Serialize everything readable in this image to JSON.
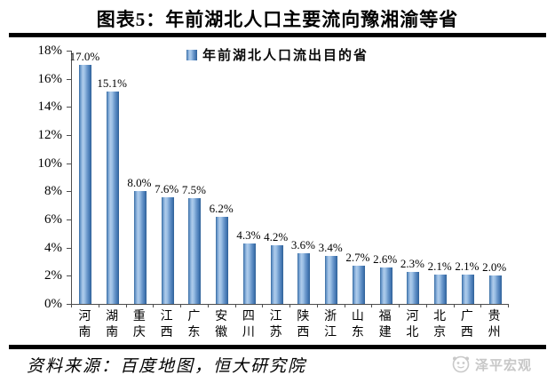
{
  "header": {
    "title": "图表5：年前湖北人口主要流向豫湘渝等省"
  },
  "chart_data": {
    "type": "bar",
    "title": "图表5：年前湖北人口主要流向豫湘渝等省",
    "legend": "年前湖北人口流出目的省",
    "legend_position": "top",
    "categories": [
      "河南",
      "湖南",
      "重庆",
      "江西",
      "广东",
      "安徽",
      "四川",
      "江苏",
      "陕西",
      "浙江",
      "山东",
      "福建",
      "河北",
      "北京",
      "广西",
      "贵州"
    ],
    "values": [
      17.0,
      15.1,
      8.0,
      7.6,
      7.5,
      6.2,
      4.3,
      4.2,
      3.6,
      3.4,
      2.7,
      2.6,
      2.3,
      2.1,
      2.1,
      2.0
    ],
    "data_labels": [
      "17.0%",
      "15.1%",
      "8.0%",
      "7.6%",
      "7.5%",
      "6.2%",
      "4.3%",
      "4.2%",
      "3.6%",
      "3.4%",
      "2.7%",
      "2.6%",
      "2.3%",
      "2.1%",
      "2.1%",
      "2.0%"
    ],
    "unit": "%",
    "xlabel": "",
    "ylabel": "",
    "ylim": [
      0,
      18
    ],
    "ytick_step": 2,
    "grid": false,
    "bar_color": "#4F81BD"
  },
  "footer": {
    "source": "资料来源：百度地图，恒大研究院",
    "logo_text": "泽平宏观"
  }
}
